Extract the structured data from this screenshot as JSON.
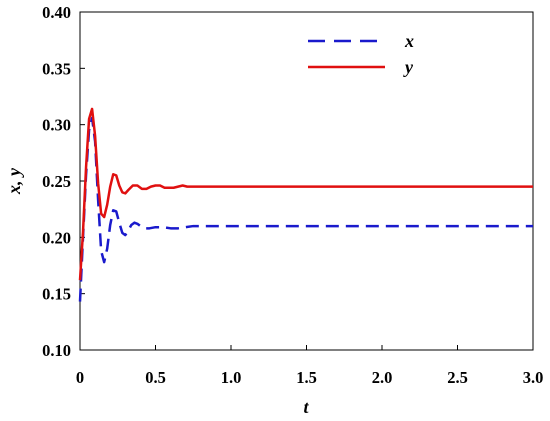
{
  "chart_data": {
    "type": "line",
    "xlabel": "t",
    "ylabel": "x, y",
    "xlim": [
      0,
      3.0
    ],
    "ylim": [
      0.1,
      0.4
    ],
    "x_ticks": [
      "0",
      "0.5",
      "1.0",
      "1.5",
      "2.0",
      "2.5",
      "3.0"
    ],
    "y_ticks": [
      "0.10",
      "0.15",
      "0.20",
      "0.25",
      "0.30",
      "0.35",
      "0.40"
    ],
    "grid": false,
    "legend_position": "top-right",
    "series": [
      {
        "name": "x",
        "color": "#1a1acc",
        "style": "dashed",
        "x": [
          0,
          0.02,
          0.04,
          0.06,
          0.08,
          0.1,
          0.12,
          0.14,
          0.16,
          0.18,
          0.2,
          0.22,
          0.24,
          0.26,
          0.28,
          0.3,
          0.32,
          0.34,
          0.36,
          0.38,
          0.4,
          0.43,
          0.46,
          0.5,
          0.55,
          0.6,
          0.65,
          0.7,
          0.75,
          0.8,
          1.0,
          1.5,
          2.0,
          2.5,
          3.0
        ],
        "y": [
          0.143,
          0.2,
          0.255,
          0.295,
          0.306,
          0.285,
          0.233,
          0.188,
          0.178,
          0.19,
          0.211,
          0.224,
          0.223,
          0.213,
          0.204,
          0.202,
          0.206,
          0.211,
          0.213,
          0.212,
          0.21,
          0.208,
          0.208,
          0.209,
          0.209,
          0.208,
          0.208,
          0.209,
          0.21,
          0.21,
          0.21,
          0.21,
          0.21,
          0.21,
          0.21
        ]
      },
      {
        "name": "y",
        "color": "#e01010",
        "style": "solid",
        "x": [
          0,
          0.02,
          0.04,
          0.06,
          0.08,
          0.1,
          0.12,
          0.14,
          0.16,
          0.18,
          0.2,
          0.22,
          0.24,
          0.26,
          0.28,
          0.3,
          0.32,
          0.35,
          0.38,
          0.41,
          0.44,
          0.47,
          0.5,
          0.53,
          0.56,
          0.59,
          0.62,
          0.65,
          0.68,
          0.71,
          0.74,
          0.77,
          0.8,
          1.0,
          1.5,
          2.0,
          2.5,
          3.0
        ],
        "y": [
          0.162,
          0.205,
          0.262,
          0.305,
          0.314,
          0.29,
          0.248,
          0.221,
          0.218,
          0.229,
          0.245,
          0.256,
          0.255,
          0.246,
          0.24,
          0.239,
          0.242,
          0.246,
          0.246,
          0.243,
          0.243,
          0.245,
          0.246,
          0.246,
          0.244,
          0.244,
          0.244,
          0.245,
          0.246,
          0.245,
          0.245,
          0.245,
          0.245,
          0.245,
          0.245,
          0.245,
          0.245,
          0.245
        ]
      }
    ]
  }
}
